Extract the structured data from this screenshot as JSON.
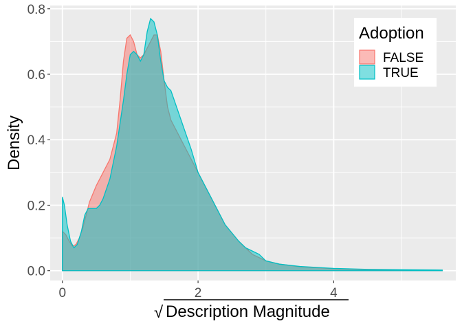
{
  "chart_data": {
    "type": "area",
    "title": "",
    "xlabel": "Description Magnitude",
    "xlabel_prefix": "√",
    "ylabel": "Density",
    "xlim": [
      -0.18,
      5.8
    ],
    "ylim": [
      -0.03,
      0.81
    ],
    "x_ticks": [
      0,
      2,
      4
    ],
    "y_ticks": [
      0.0,
      0.2,
      0.4,
      0.6,
      0.8
    ],
    "x_tick_labels": [
      "0",
      "2",
      "4"
    ],
    "y_tick_labels": [
      "0.0",
      "0.2",
      "0.4",
      "0.6",
      "0.8"
    ],
    "grid": true,
    "legend": {
      "title": "Adoption",
      "placement": "top-right"
    },
    "series": [
      {
        "name": "FALSE",
        "fill": "#F8766D",
        "line": "#F8766D",
        "points": [
          [
            0.0,
            0.12
          ],
          [
            0.05,
            0.11
          ],
          [
            0.1,
            0.09
          ],
          [
            0.15,
            0.075
          ],
          [
            0.2,
            0.08
          ],
          [
            0.25,
            0.1
          ],
          [
            0.3,
            0.13
          ],
          [
            0.35,
            0.17
          ],
          [
            0.4,
            0.21
          ],
          [
            0.5,
            0.26
          ],
          [
            0.6,
            0.3
          ],
          [
            0.7,
            0.34
          ],
          [
            0.8,
            0.42
          ],
          [
            0.85,
            0.52
          ],
          [
            0.9,
            0.64
          ],
          [
            0.95,
            0.71
          ],
          [
            1.0,
            0.72
          ],
          [
            1.05,
            0.7
          ],
          [
            1.1,
            0.66
          ],
          [
            1.15,
            0.65
          ],
          [
            1.2,
            0.66
          ],
          [
            1.25,
            0.68
          ],
          [
            1.3,
            0.7
          ],
          [
            1.35,
            0.72
          ],
          [
            1.4,
            0.72
          ],
          [
            1.45,
            0.67
          ],
          [
            1.5,
            0.58
          ],
          [
            1.55,
            0.5
          ],
          [
            1.6,
            0.46
          ],
          [
            1.7,
            0.42
          ],
          [
            1.8,
            0.38
          ],
          [
            1.9,
            0.34
          ],
          [
            2.0,
            0.3
          ],
          [
            2.2,
            0.22
          ],
          [
            2.4,
            0.14
          ],
          [
            2.6,
            0.09
          ],
          [
            2.8,
            0.05
          ],
          [
            3.0,
            0.03
          ],
          [
            3.2,
            0.02
          ],
          [
            3.5,
            0.012
          ],
          [
            4.0,
            0.006
          ],
          [
            4.5,
            0.003
          ],
          [
            5.0,
            0.002
          ],
          [
            5.6,
            0.001
          ]
        ]
      },
      {
        "name": "TRUE",
        "fill": "#00BFC4",
        "line": "#00BFC4",
        "points": [
          [
            0.0,
            0.225
          ],
          [
            0.03,
            0.2
          ],
          [
            0.07,
            0.14
          ],
          [
            0.12,
            0.09
          ],
          [
            0.17,
            0.07
          ],
          [
            0.22,
            0.08
          ],
          [
            0.28,
            0.12
          ],
          [
            0.33,
            0.17
          ],
          [
            0.38,
            0.19
          ],
          [
            0.45,
            0.19
          ],
          [
            0.5,
            0.19
          ],
          [
            0.55,
            0.2
          ],
          [
            0.6,
            0.22
          ],
          [
            0.7,
            0.28
          ],
          [
            0.8,
            0.38
          ],
          [
            0.9,
            0.52
          ],
          [
            0.95,
            0.6
          ],
          [
            1.0,
            0.66
          ],
          [
            1.05,
            0.67
          ],
          [
            1.1,
            0.66
          ],
          [
            1.15,
            0.64
          ],
          [
            1.2,
            0.66
          ],
          [
            1.25,
            0.73
          ],
          [
            1.3,
            0.77
          ],
          [
            1.35,
            0.76
          ],
          [
            1.4,
            0.72
          ],
          [
            1.45,
            0.64
          ],
          [
            1.5,
            0.58
          ],
          [
            1.55,
            0.56
          ],
          [
            1.6,
            0.55
          ],
          [
            1.7,
            0.49
          ],
          [
            1.8,
            0.43
          ],
          [
            1.9,
            0.37
          ],
          [
            2.0,
            0.3
          ],
          [
            2.2,
            0.22
          ],
          [
            2.4,
            0.14
          ],
          [
            2.6,
            0.09
          ],
          [
            2.7,
            0.07
          ],
          [
            2.8,
            0.06
          ],
          [
            2.9,
            0.05
          ],
          [
            3.0,
            0.03
          ],
          [
            3.2,
            0.02
          ],
          [
            3.5,
            0.013
          ],
          [
            4.0,
            0.007
          ],
          [
            4.5,
            0.004
          ],
          [
            5.0,
            0.003
          ],
          [
            5.6,
            0.002
          ]
        ]
      }
    ]
  }
}
